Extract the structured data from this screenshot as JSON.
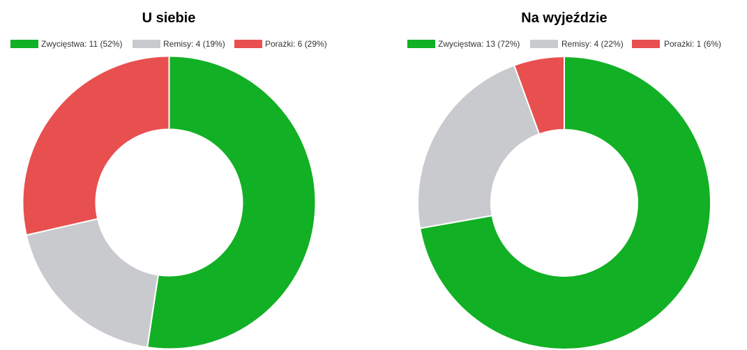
{
  "chart_data": [
    {
      "type": "pie",
      "variant": "donut",
      "title": "U siebie",
      "series": [
        {
          "name": "Zwycięstwa",
          "value": 11,
          "percent": 52,
          "color": "#12b024",
          "legend": "Zwycięstwa: 11 (52%)"
        },
        {
          "name": "Remisy",
          "value": 4,
          "percent": 19,
          "color": "#c9cacd",
          "legend": "Remisy: 4 (19%)"
        },
        {
          "name": "Porażki",
          "value": 6,
          "percent": 29,
          "color": "#e84f4f",
          "legend": "Porażki: 6 (29%)"
        }
      ],
      "legend_position": "top"
    },
    {
      "type": "pie",
      "variant": "donut",
      "title": "Na wyjeździe",
      "series": [
        {
          "name": "Zwycięstwa",
          "value": 13,
          "percent": 72,
          "color": "#12b024",
          "legend": "Zwycięstwa: 13 (72%)"
        },
        {
          "name": "Remisy",
          "value": 4,
          "percent": 22,
          "color": "#c9cacd",
          "legend": "Remisy: 4 (22%)"
        },
        {
          "name": "Porażki",
          "value": 1,
          "percent": 6,
          "color": "#e84f4f",
          "legend": "Porażki: 1 (6%)"
        }
      ],
      "legend_position": "top"
    }
  ]
}
